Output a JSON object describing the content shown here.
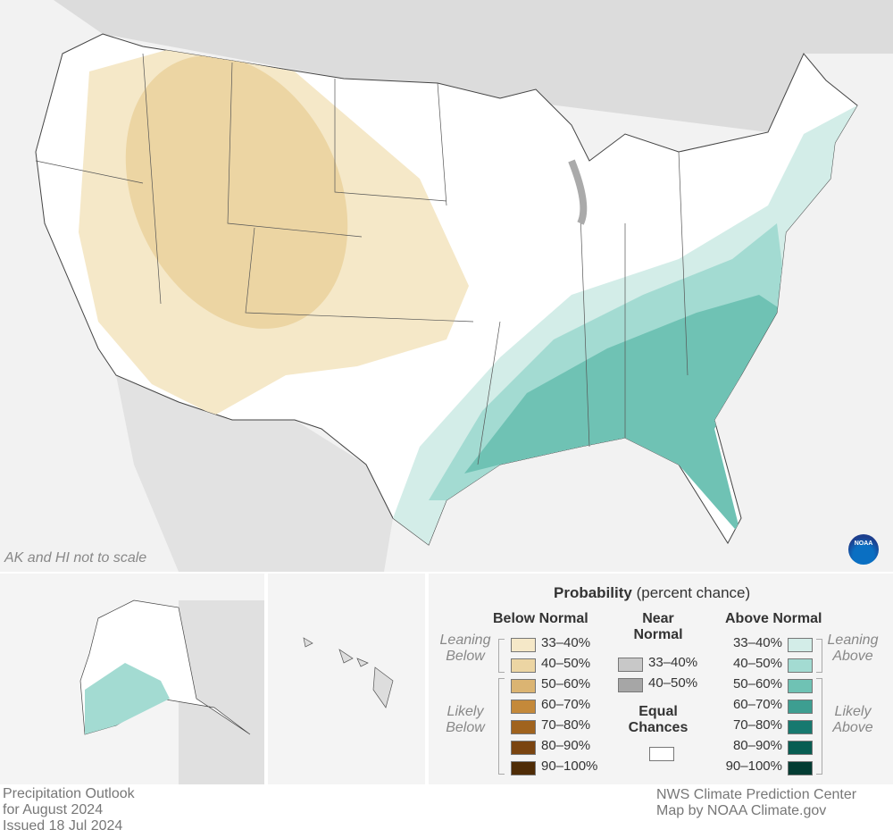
{
  "map": {
    "note": "AK and HI not to scale",
    "logo": "NOAA"
  },
  "legend": {
    "title": "Probability",
    "subtitle": "(percent chance)",
    "below": {
      "heading": "Below Normal",
      "leaning": "Leaning Below",
      "likely": "Likely Below",
      "items": [
        {
          "label": "33–40%",
          "color": "#f5e8c8"
        },
        {
          "label": "40–50%",
          "color": "#ecd5a3"
        },
        {
          "label": "50–60%",
          "color": "#dbb472"
        },
        {
          "label": "60–70%",
          "color": "#c4893a"
        },
        {
          "label": "70–80%",
          "color": "#a0631e"
        },
        {
          "label": "80–90%",
          "color": "#7a4410"
        },
        {
          "label": "90–100%",
          "color": "#4f2c06"
        }
      ]
    },
    "near": {
      "heading": "Near Normal",
      "items": [
        {
          "label": "33–40%",
          "color": "#c8c8c8"
        },
        {
          "label": "40–50%",
          "color": "#a6a6a6"
        }
      ],
      "equal": "Equal Chances",
      "equal_color": "#ffffff"
    },
    "above": {
      "heading": "Above Normal",
      "leaning": "Leaning Above",
      "likely": "Likely Above",
      "items": [
        {
          "label": "33–40%",
          "color": "#d3ede8"
        },
        {
          "label": "40–50%",
          "color": "#a3dbd2"
        },
        {
          "label": "50–60%",
          "color": "#6fc2b4"
        },
        {
          "label": "60–70%",
          "color": "#3d9e91"
        },
        {
          "label": "70–80%",
          "color": "#17796f"
        },
        {
          "label": "80–90%",
          "color": "#075d52"
        },
        {
          "label": "90–100%",
          "color": "#033c33"
        }
      ]
    }
  },
  "footer": {
    "left": "Precipitation Outlook\nfor August 2024\nIssued 18 Jul 2024",
    "right": "NWS Climate Prediction Center\nMap by NOAA Climate.gov"
  }
}
